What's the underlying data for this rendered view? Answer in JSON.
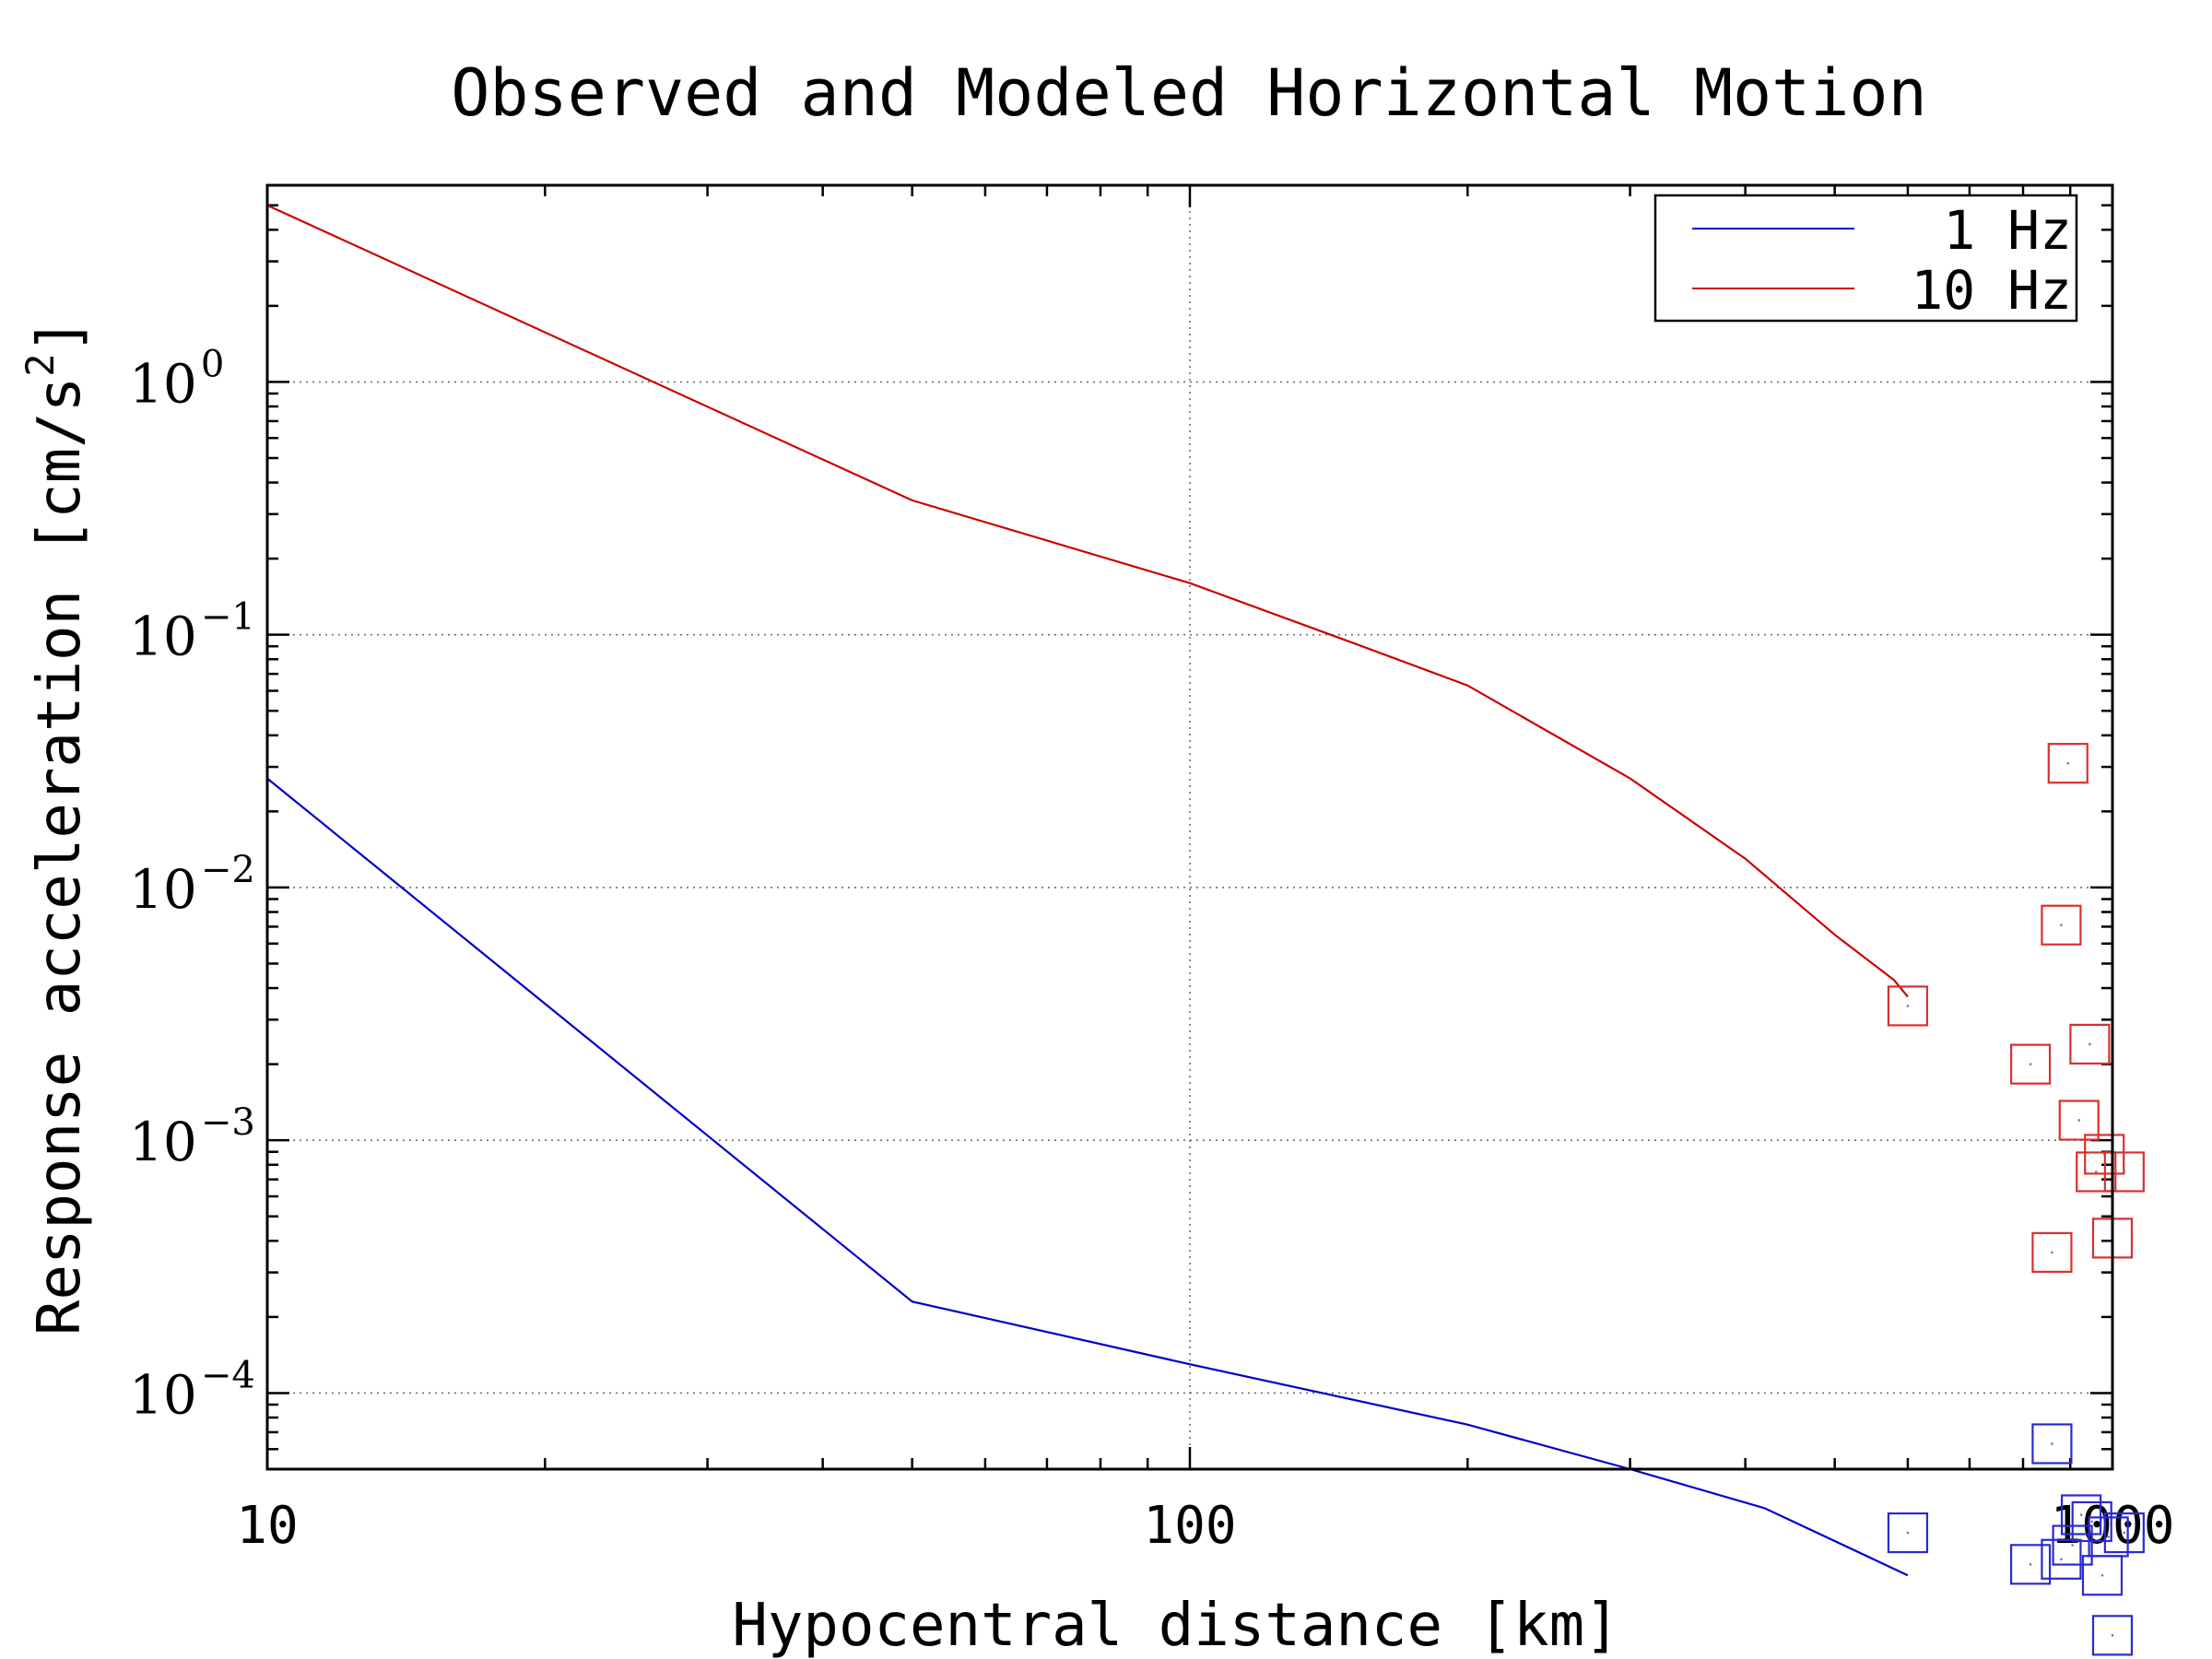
{
  "chart_data": {
    "type": "line",
    "title": "Observed and Modeled Horizontal Motion",
    "xlabel": "Hypocentral distance [km]",
    "ylabel_main": "Response acceleration [cm/s",
    "ylabel_sup": "2",
    "ylabel_end": "]",
    "x_scale": "log",
    "y_scale": "log",
    "xlim": [
      10,
      1000
    ],
    "ylim": [
      5e-05,
      6
    ],
    "grid": true,
    "legend_position": "top-right",
    "x_ticks": [
      {
        "value": 10,
        "label": "10"
      },
      {
        "value": 100,
        "label": "100"
      },
      {
        "value": 1000,
        "label": "1000"
      }
    ],
    "y_ticks": [
      {
        "value": 0.0001,
        "base": "10",
        "exp": "−4"
      },
      {
        "value": 0.001,
        "base": "10",
        "exp": "−3"
      },
      {
        "value": 0.01,
        "base": "10",
        "exp": "−2"
      },
      {
        "value": 0.1,
        "base": "10",
        "exp": "−1"
      },
      {
        "value": 1,
        "base": "10",
        "exp": "0"
      }
    ],
    "series": [
      {
        "name": "1 Hz",
        "color": "#0000cc",
        "marker_color": "#2a2ad0",
        "line": [
          [
            10,
            0.027
          ],
          [
            50,
            0.00023
          ],
          [
            100,
            0.00013
          ],
          [
            200,
            7.5e-05
          ],
          [
            300,
            5e-05
          ],
          [
            420,
            3.5e-05
          ],
          [
            600,
            1.9e-05
          ]
        ],
        "observed": [
          [
            600,
            2.8e-05
          ],
          [
            815,
            2.1e-05
          ],
          [
            860,
            6.3e-05
          ],
          [
            880,
            2.2e-05
          ],
          [
            905,
            2.5e-05
          ],
          [
            925,
            3.3e-05
          ],
          [
            950,
            3.1e-05
          ],
          [
            975,
            1.9e-05
          ],
          [
            990,
            2.7e-05
          ],
          [
            1000,
            1.1e-05
          ],
          [
            1030,
            2.8e-05
          ]
        ]
      },
      {
        "name": "10 Hz",
        "color": "#cc0000",
        "marker_color": "#d83030",
        "line": [
          [
            10,
            5.0
          ],
          [
            50,
            0.34
          ],
          [
            100,
            0.16
          ],
          [
            150,
            0.093
          ],
          [
            200,
            0.063
          ],
          [
            300,
            0.027
          ],
          [
            400,
            0.013
          ],
          [
            500,
            0.0065
          ],
          [
            580,
            0.0043
          ],
          [
            600,
            0.0037
          ]
        ],
        "observed": [
          [
            600,
            0.0034
          ],
          [
            815,
            0.002
          ],
          [
            860,
            0.00036
          ],
          [
            880,
            0.0071
          ],
          [
            895,
            0.031
          ],
          [
            920,
            0.0012
          ],
          [
            945,
            0.0024
          ],
          [
            960,
            0.00075
          ],
          [
            980,
            0.00088
          ],
          [
            1000,
            0.00041
          ],
          [
            1030,
            0.00075
          ]
        ]
      }
    ]
  }
}
